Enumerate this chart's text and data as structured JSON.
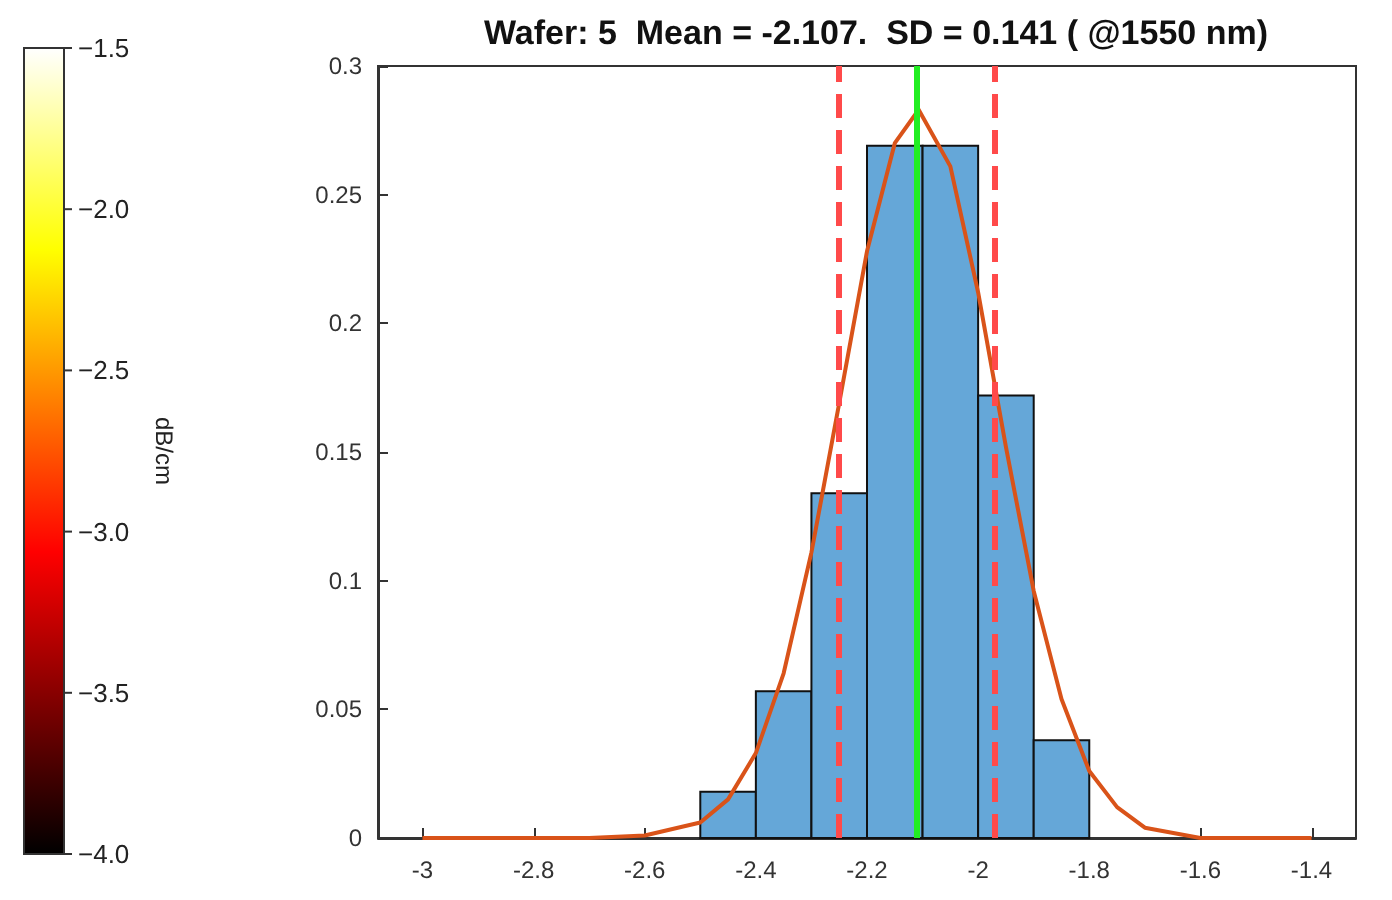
{
  "chart_data": {
    "type": "histogram",
    "title": "Wafer: 5  Mean = -2.107.  SD = 0.141 ( @1550 nm)",
    "bins": [
      -2.5,
      -2.4,
      -2.3,
      -2.2,
      -2.1,
      -2.0,
      -1.9,
      -1.8
    ],
    "values": [
      0.018,
      0.057,
      0.134,
      0.269,
      0.269,
      0.172,
      0.038
    ],
    "color": "#65a7d8",
    "series": [
      {
        "type": "line",
        "color": "#d95319",
        "x": [
          -3.0,
          -2.8,
          -2.7,
          -2.6,
          -2.5,
          -2.45,
          -2.4,
          -2.35,
          -2.3,
          -2.25,
          -2.2,
          -2.15,
          -2.107,
          -2.05,
          -2.0,
          -1.95,
          -1.9,
          -1.85,
          -1.8,
          -1.75,
          -1.7,
          -1.6,
          -1.5,
          -1.4
        ],
        "values": [
          0,
          0,
          0,
          0.001,
          0.006,
          0.015,
          0.033,
          0.064,
          0.111,
          0.169,
          0.228,
          0.27,
          0.283,
          0.261,
          0.212,
          0.152,
          0.096,
          0.054,
          0.026,
          0.012,
          0.004,
          0,
          0,
          0
        ]
      }
    ],
    "marker": "none",
    "ref_lines": [
      {
        "axis": "x",
        "value": -2.107,
        "color": "#22ee22",
        "line_style": "solid"
      },
      {
        "axis": "x",
        "value": -2.248,
        "color": "#ff4a4a",
        "line_style": "dashed"
      },
      {
        "axis": "x",
        "value": -1.966,
        "color": "#ff4a4a",
        "line_style": "dashed"
      }
    ],
    "xlim": [
      -3.08,
      -1.32
    ],
    "xticks": [
      -3,
      -2.8,
      -2.6,
      -2.4,
      -2.2,
      -2,
      -1.8,
      -1.6,
      -1.4
    ],
    "ylim": [
      0,
      0.3
    ],
    "yticks": [
      0,
      0.05,
      0.1,
      0.15,
      0.2,
      0.25,
      0.3
    ],
    "clim": [
      -4,
      -1.5
    ],
    "cticks": [
      {
        "value": -4,
        "label": "−4.0"
      },
      {
        "value": -3.5,
        "label": "−3.5"
      },
      {
        "value": -3,
        "label": "−3.0"
      },
      {
        "value": -2.5,
        "label": "−2.5"
      },
      {
        "value": -2,
        "label": "−2.0"
      },
      {
        "value": -1.5,
        "label": "−1.5"
      }
    ],
    "clabel": "dB/cm"
  }
}
